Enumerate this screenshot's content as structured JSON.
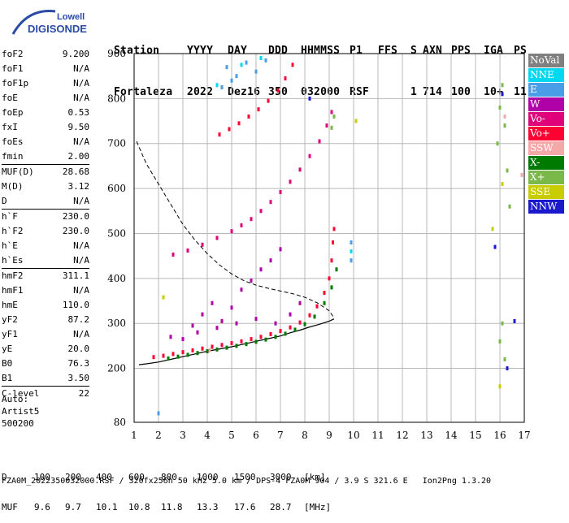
{
  "logo": {
    "line1": "Lowell",
    "line2": "DIGISONDE"
  },
  "header": {
    "labels": [
      "Station",
      "YYYY",
      "DAY",
      "DDD",
      "HHMMSS",
      "P1",
      "FFS",
      "S",
      "AXN",
      "PPS",
      "IGA",
      "PS"
    ],
    "values": [
      "Fortaleza",
      "2022",
      "Dez16",
      "350",
      "032000",
      "RSF",
      "",
      "1",
      "714",
      "100",
      "10+",
      "11"
    ]
  },
  "params": [
    {
      "group": [
        {
          "name": "foF2",
          "value": "9.200"
        },
        {
          "name": "foF1",
          "value": "N/A"
        },
        {
          "name": "foF1p",
          "value": "N/A"
        },
        {
          "name": "foE",
          "value": "N/A"
        },
        {
          "name": "foEp",
          "value": "0.53"
        },
        {
          "name": "fxI",
          "value": "9.50"
        },
        {
          "name": "foEs",
          "value": "N/A"
        },
        {
          "name": "fmin",
          "value": "2.00"
        }
      ]
    },
    {
      "group": [
        {
          "name": "MUF(D)",
          "value": "28.68"
        },
        {
          "name": "M(D)",
          "value": "3.12"
        },
        {
          "name": "D",
          "value": "N/A"
        }
      ]
    },
    {
      "group": [
        {
          "name": "h`F",
          "value": "230.0"
        },
        {
          "name": "h`F2",
          "value": "230.0"
        },
        {
          "name": "h`E",
          "value": "N/A"
        },
        {
          "name": "h`Es",
          "value": "N/A"
        }
      ]
    },
    {
      "group": [
        {
          "name": "hmF2",
          "value": "311.1"
        },
        {
          "name": "hmF1",
          "value": "N/A"
        },
        {
          "name": "hmE",
          "value": "110.0"
        },
        {
          "name": "yF2",
          "value": "87.2"
        },
        {
          "name": "yF1",
          "value": "N/A"
        },
        {
          "name": "yE",
          "value": "20.0"
        },
        {
          "name": "B0",
          "value": "76.3"
        },
        {
          "name": "B1",
          "value": "3.50"
        }
      ]
    },
    {
      "group": [
        {
          "name": "C-level",
          "value": "22"
        }
      ]
    }
  ],
  "auto": {
    "line1": "Auto:",
    "line2": "Artist5",
    "line3": "500200"
  },
  "legend": [
    {
      "label": "NoVal",
      "color": "#808080"
    },
    {
      "label": "NNE",
      "color": "#00d8f0"
    },
    {
      "label": "E",
      "color": "#4a9ee8"
    },
    {
      "label": "W",
      "color": "#b000a8"
    },
    {
      "label": "Vo-",
      "color": "#e0007a"
    },
    {
      "label": "Vo+",
      "color": "#ff0033"
    },
    {
      "label": "SSW",
      "color": "#f4a8a8"
    },
    {
      "label": "X-",
      "color": "#007a00"
    },
    {
      "label": "X+",
      "color": "#7ab84a"
    },
    {
      "label": "SSE",
      "color": "#c8cc00"
    },
    {
      "label": "NNW",
      "color": "#1a1acc"
    }
  ],
  "bottom": {
    "d_label": "D",
    "d_values": [
      "100",
      "200",
      "400",
      "600",
      "800",
      "1000",
      "1500",
      "3000"
    ],
    "d_unit": "[km]",
    "muf_label": "MUF",
    "muf_values": [
      "9.6",
      "9.7",
      "10.1",
      "10.8",
      "11.8",
      "13.3",
      "17.6",
      "28.7"
    ],
    "muf_unit": "[MHz]"
  },
  "footer": "FZA0M_2022350032000.RSF / 320fx256h 50 kHz 5.0 km / DPS-4 FZA0M 904 / 3.9 S 321.6 E   Ion2Png 1.3.20",
  "chart_data": {
    "type": "scatter",
    "xlabel": "",
    "ylabel": "",
    "xlim": [
      1,
      17
    ],
    "ylim": [
      80,
      900
    ],
    "xticks": [
      1,
      2,
      3,
      4,
      5,
      6,
      7,
      8,
      9,
      10,
      11,
      12,
      13,
      14,
      15,
      16,
      17
    ],
    "yticks": [
      80,
      200,
      300,
      400,
      500,
      600,
      700,
      800,
      900
    ],
    "grid": true,
    "legend_position": "right",
    "series": [
      {
        "name": "Vo+",
        "color": "#ff0033",
        "points": [
          [
            1.8,
            225
          ],
          [
            2.2,
            228
          ],
          [
            2.6,
            232
          ],
          [
            3,
            236
          ],
          [
            3.4,
            240
          ],
          [
            3.8,
            244
          ],
          [
            4.2,
            248
          ],
          [
            4.6,
            252
          ],
          [
            5,
            256
          ],
          [
            5.4,
            260
          ],
          [
            5.8,
            265
          ],
          [
            6.2,
            270
          ],
          [
            6.6,
            276
          ],
          [
            7,
            283
          ],
          [
            7.4,
            291
          ],
          [
            7.8,
            302
          ],
          [
            8.2,
            318
          ],
          [
            8.5,
            338
          ],
          [
            8.8,
            368
          ],
          [
            9,
            400
          ],
          [
            9.1,
            440
          ],
          [
            9.15,
            480
          ],
          [
            9.2,
            510
          ]
        ]
      },
      {
        "name": "X-",
        "color": "#007a00",
        "points": [
          [
            2.4,
            222
          ],
          [
            2.8,
            226
          ],
          [
            3.2,
            230
          ],
          [
            3.6,
            234
          ],
          [
            4,
            238
          ],
          [
            4.4,
            242
          ],
          [
            4.8,
            246
          ],
          [
            5.2,
            250
          ],
          [
            5.6,
            254
          ],
          [
            6,
            259
          ],
          [
            6.4,
            264
          ],
          [
            6.8,
            270
          ],
          [
            7.2,
            277
          ],
          [
            7.6,
            286
          ],
          [
            8,
            298
          ],
          [
            8.4,
            315
          ],
          [
            8.8,
            345
          ],
          [
            9.1,
            380
          ],
          [
            9.3,
            420
          ]
        ]
      },
      {
        "name": "Vo-",
        "color": "#e0007a",
        "points": [
          [
            2.6,
            453
          ],
          [
            3.2,
            462
          ],
          [
            3.8,
            475
          ],
          [
            4.4,
            490
          ],
          [
            5,
            505
          ],
          [
            5.4,
            518
          ],
          [
            5.8,
            532
          ],
          [
            6.2,
            550
          ],
          [
            6.6,
            570
          ],
          [
            7,
            592
          ],
          [
            7.4,
            615
          ],
          [
            7.8,
            642
          ],
          [
            8.2,
            672
          ],
          [
            8.6,
            705
          ],
          [
            8.9,
            740
          ],
          [
            9.1,
            770
          ]
        ]
      },
      {
        "name": "Vo+",
        "color": "#ff0033",
        "points": [
          [
            4.5,
            720
          ],
          [
            4.9,
            732
          ],
          [
            5.3,
            745
          ],
          [
            5.7,
            760
          ],
          [
            6.1,
            776
          ],
          [
            6.5,
            795
          ],
          [
            6.9,
            818
          ],
          [
            7.2,
            845
          ],
          [
            7.5,
            875
          ]
        ]
      },
      {
        "name": "W",
        "color": "#b000a8",
        "points": [
          [
            3,
            265
          ],
          [
            3.4,
            295
          ],
          [
            3.8,
            320
          ],
          [
            4.2,
            345
          ],
          [
            4.6,
            305
          ],
          [
            5,
            335
          ],
          [
            5.4,
            375
          ],
          [
            5.8,
            395
          ],
          [
            6.2,
            420
          ],
          [
            6.6,
            440
          ],
          [
            7,
            465
          ],
          [
            2.5,
            270
          ],
          [
            3.6,
            280
          ],
          [
            4.4,
            290
          ],
          [
            5.2,
            300
          ],
          [
            6,
            310
          ],
          [
            6.8,
            300
          ],
          [
            7.4,
            320
          ],
          [
            7.8,
            345
          ]
        ]
      },
      {
        "name": "E",
        "color": "#4a9ee8",
        "points": [
          [
            4.8,
            870
          ],
          [
            5.2,
            850
          ],
          [
            5.6,
            880
          ],
          [
            6,
            860
          ],
          [
            6.4,
            885
          ],
          [
            4.6,
            825
          ],
          [
            5,
            840
          ],
          [
            9.9,
            440
          ],
          [
            9.9,
            480
          ],
          [
            2,
            100
          ]
        ]
      },
      {
        "name": "NNE",
        "color": "#00d8f0",
        "points": [
          [
            4.4,
            830
          ],
          [
            5.4,
            875
          ],
          [
            6.2,
            890
          ],
          [
            9.9,
            460
          ]
        ]
      },
      {
        "name": "X+",
        "color": "#7ab84a",
        "points": [
          [
            16.1,
            830
          ],
          [
            16,
            780
          ],
          [
            16.2,
            740
          ],
          [
            15.9,
            700
          ],
          [
            16.3,
            640
          ],
          [
            16.1,
            300
          ],
          [
            16,
            260
          ],
          [
            16.2,
            220
          ],
          [
            16.4,
            560
          ],
          [
            9.1,
            735
          ],
          [
            9.2,
            760
          ]
        ]
      },
      {
        "name": "NNW",
        "color": "#1a1acc",
        "points": [
          [
            16.6,
            305
          ],
          [
            16.3,
            200
          ],
          [
            15.8,
            470
          ],
          [
            16.1,
            810
          ],
          [
            8.2,
            800
          ]
        ]
      },
      {
        "name": "SSE",
        "color": "#c8cc00",
        "points": [
          [
            16,
            160
          ],
          [
            15.7,
            510
          ],
          [
            16.1,
            610
          ],
          [
            10.1,
            750
          ],
          [
            2.2,
            358
          ]
        ]
      },
      {
        "name": "SSW",
        "color": "#f4a8a8",
        "points": [
          [
            16.9,
            630
          ],
          [
            16.2,
            760
          ],
          [
            4.1,
            240
          ]
        ]
      }
    ],
    "profile_curve": [
      [
        9.2,
        310
      ],
      [
        9,
        305
      ],
      [
        8.6,
        298
      ],
      [
        8.2,
        292
      ],
      [
        7.8,
        285
      ],
      [
        7.4,
        279
      ],
      [
        7,
        272
      ],
      [
        6.5,
        266
      ],
      [
        6,
        260
      ],
      [
        5.5,
        254
      ],
      [
        5,
        248
      ],
      [
        4.5,
        243
      ],
      [
        4,
        238
      ],
      [
        3.5,
        232
      ],
      [
        3,
        226
      ],
      [
        2.5,
        220
      ],
      [
        2,
        214
      ],
      [
        1.5,
        210
      ],
      [
        1.2,
        208
      ]
    ],
    "muf_curve": [
      [
        1.1,
        705
      ],
      [
        1.5,
        655
      ],
      [
        2,
        610
      ],
      [
        2.5,
        565
      ],
      [
        3,
        520
      ],
      [
        3.5,
        485
      ],
      [
        4,
        455
      ],
      [
        4.5,
        430
      ],
      [
        5,
        410
      ],
      [
        5.5,
        395
      ],
      [
        6,
        385
      ],
      [
        6.5,
        378
      ],
      [
        7,
        372
      ],
      [
        7.5,
        366
      ],
      [
        8,
        358
      ],
      [
        8.5,
        346
      ],
      [
        9,
        328
      ],
      [
        9.2,
        312
      ]
    ]
  }
}
